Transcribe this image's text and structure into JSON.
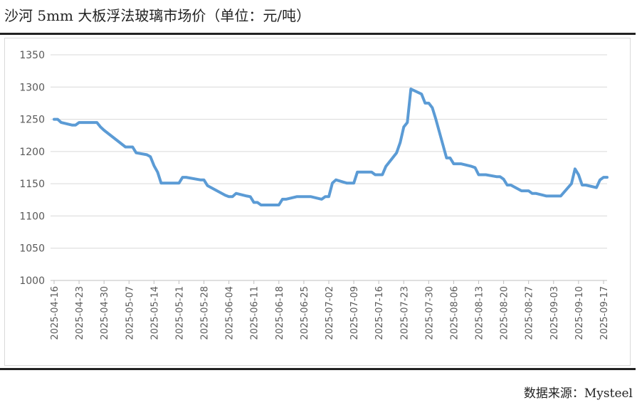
{
  "title": "沙河 5mm 大板浮法玻璃市场价（单位：元/吨）",
  "source": "数据来源：Mysteel",
  "chart_data": {
    "type": "line",
    "title": "沙河 5mm 大板浮法玻璃市场价（单位：元/吨）",
    "xlabel": "",
    "ylabel": "",
    "ylim": [
      1000,
      1350
    ],
    "yticks": [
      1000,
      1050,
      1100,
      1150,
      1200,
      1250,
      1300,
      1350
    ],
    "x_tick_labels": [
      "2025-04-16",
      "2025-04-23",
      "2025-04-30",
      "2025-05-07",
      "2025-05-14",
      "2025-05-21",
      "2025-05-28",
      "2025-06-04",
      "2025-06-11",
      "2025-06-18",
      "2025-06-25",
      "2025-07-02",
      "2025-07-09",
      "2025-07-16",
      "2025-07-23",
      "2025-07-30",
      "2025-08-06",
      "2025-08-13",
      "2025-08-20",
      "2025-08-27",
      "2025-09-03",
      "2025-09-10",
      "2025-09-17"
    ],
    "grid": "horizontal",
    "legend": "none",
    "line_color": "#5b9bd5",
    "series": [
      {
        "x": [
          "2025-04-16",
          "2025-04-17",
          "2025-04-18",
          "2025-04-21",
          "2025-04-22",
          "2025-04-23",
          "2025-04-24",
          "2025-04-25",
          "2025-04-28",
          "2025-04-29",
          "2025-04-30",
          "2025-05-06",
          "2025-05-07",
          "2025-05-08",
          "2025-05-09",
          "2025-05-12",
          "2025-05-13",
          "2025-05-14",
          "2025-05-15",
          "2025-05-16",
          "2025-05-19",
          "2025-05-20",
          "2025-05-21",
          "2025-05-22",
          "2025-05-23",
          "2025-05-26",
          "2025-05-27",
          "2025-05-28",
          "2025-05-29",
          "2025-06-03",
          "2025-06-04",
          "2025-06-05",
          "2025-06-06",
          "2025-06-09",
          "2025-06-10",
          "2025-06-11",
          "2025-06-12",
          "2025-06-13",
          "2025-06-16",
          "2025-06-17",
          "2025-06-18",
          "2025-06-19",
          "2025-06-20",
          "2025-06-23",
          "2025-06-24",
          "2025-06-25",
          "2025-06-26",
          "2025-06-27",
          "2025-06-30",
          "2025-07-01",
          "2025-07-02",
          "2025-07-03",
          "2025-07-04",
          "2025-07-07",
          "2025-07-08",
          "2025-07-09",
          "2025-07-10",
          "2025-07-11",
          "2025-07-14",
          "2025-07-15",
          "2025-07-16",
          "2025-07-17",
          "2025-07-18",
          "2025-07-21",
          "2025-07-22",
          "2025-07-23",
          "2025-07-24",
          "2025-07-25",
          "2025-07-28",
          "2025-07-29",
          "2025-07-30",
          "2025-07-31",
          "2025-08-01",
          "2025-08-04",
          "2025-08-05",
          "2025-08-06",
          "2025-08-07",
          "2025-08-08",
          "2025-08-11",
          "2025-08-12",
          "2025-08-13",
          "2025-08-14",
          "2025-08-15",
          "2025-08-18",
          "2025-08-19",
          "2025-08-20",
          "2025-08-21",
          "2025-08-22",
          "2025-08-25",
          "2025-08-26",
          "2025-08-27",
          "2025-08-28",
          "2025-08-29",
          "2025-09-01",
          "2025-09-02",
          "2025-09-03",
          "2025-09-04",
          "2025-09-05",
          "2025-09-08",
          "2025-09-09",
          "2025-09-10",
          "2025-09-11",
          "2025-09-12",
          "2025-09-15",
          "2025-09-16",
          "2025-09-17",
          "2025-09-18"
        ],
        "values": [
          1250,
          1250,
          1245,
          1241,
          1241,
          1245,
          1245,
          1245,
          1245,
          1238,
          1233,
          1207,
          1207,
          1207,
          1198,
          1195,
          1192,
          1178,
          1168,
          1151,
          1151,
          1151,
          1151,
          1160,
          1160,
          1157,
          1156,
          1156,
          1147,
          1132,
          1130,
          1130,
          1135,
          1131,
          1130,
          1121,
          1121,
          1117,
          1117,
          1117,
          1117,
          1126,
          1126,
          1130,
          1130,
          1130,
          1130,
          1130,
          1126,
          1130,
          1130,
          1151,
          1156,
          1151,
          1151,
          1151,
          1168,
          1168,
          1168,
          1164,
          1164,
          1164,
          1177,
          1198,
          1214,
          1238,
          1245,
          1297,
          1289,
          1275,
          1275,
          1268,
          1250,
          1190,
          1190,
          1181,
          1181,
          1181,
          1177,
          1175,
          1164,
          1164,
          1164,
          1161,
          1161,
          1157,
          1148,
          1148,
          1139,
          1139,
          1139,
          1135,
          1135,
          1131,
          1131,
          1131,
          1131,
          1131,
          1150,
          1173,
          1164,
          1148,
          1148,
          1144,
          1156,
          1160,
          1160
        ]
      }
    ]
  }
}
